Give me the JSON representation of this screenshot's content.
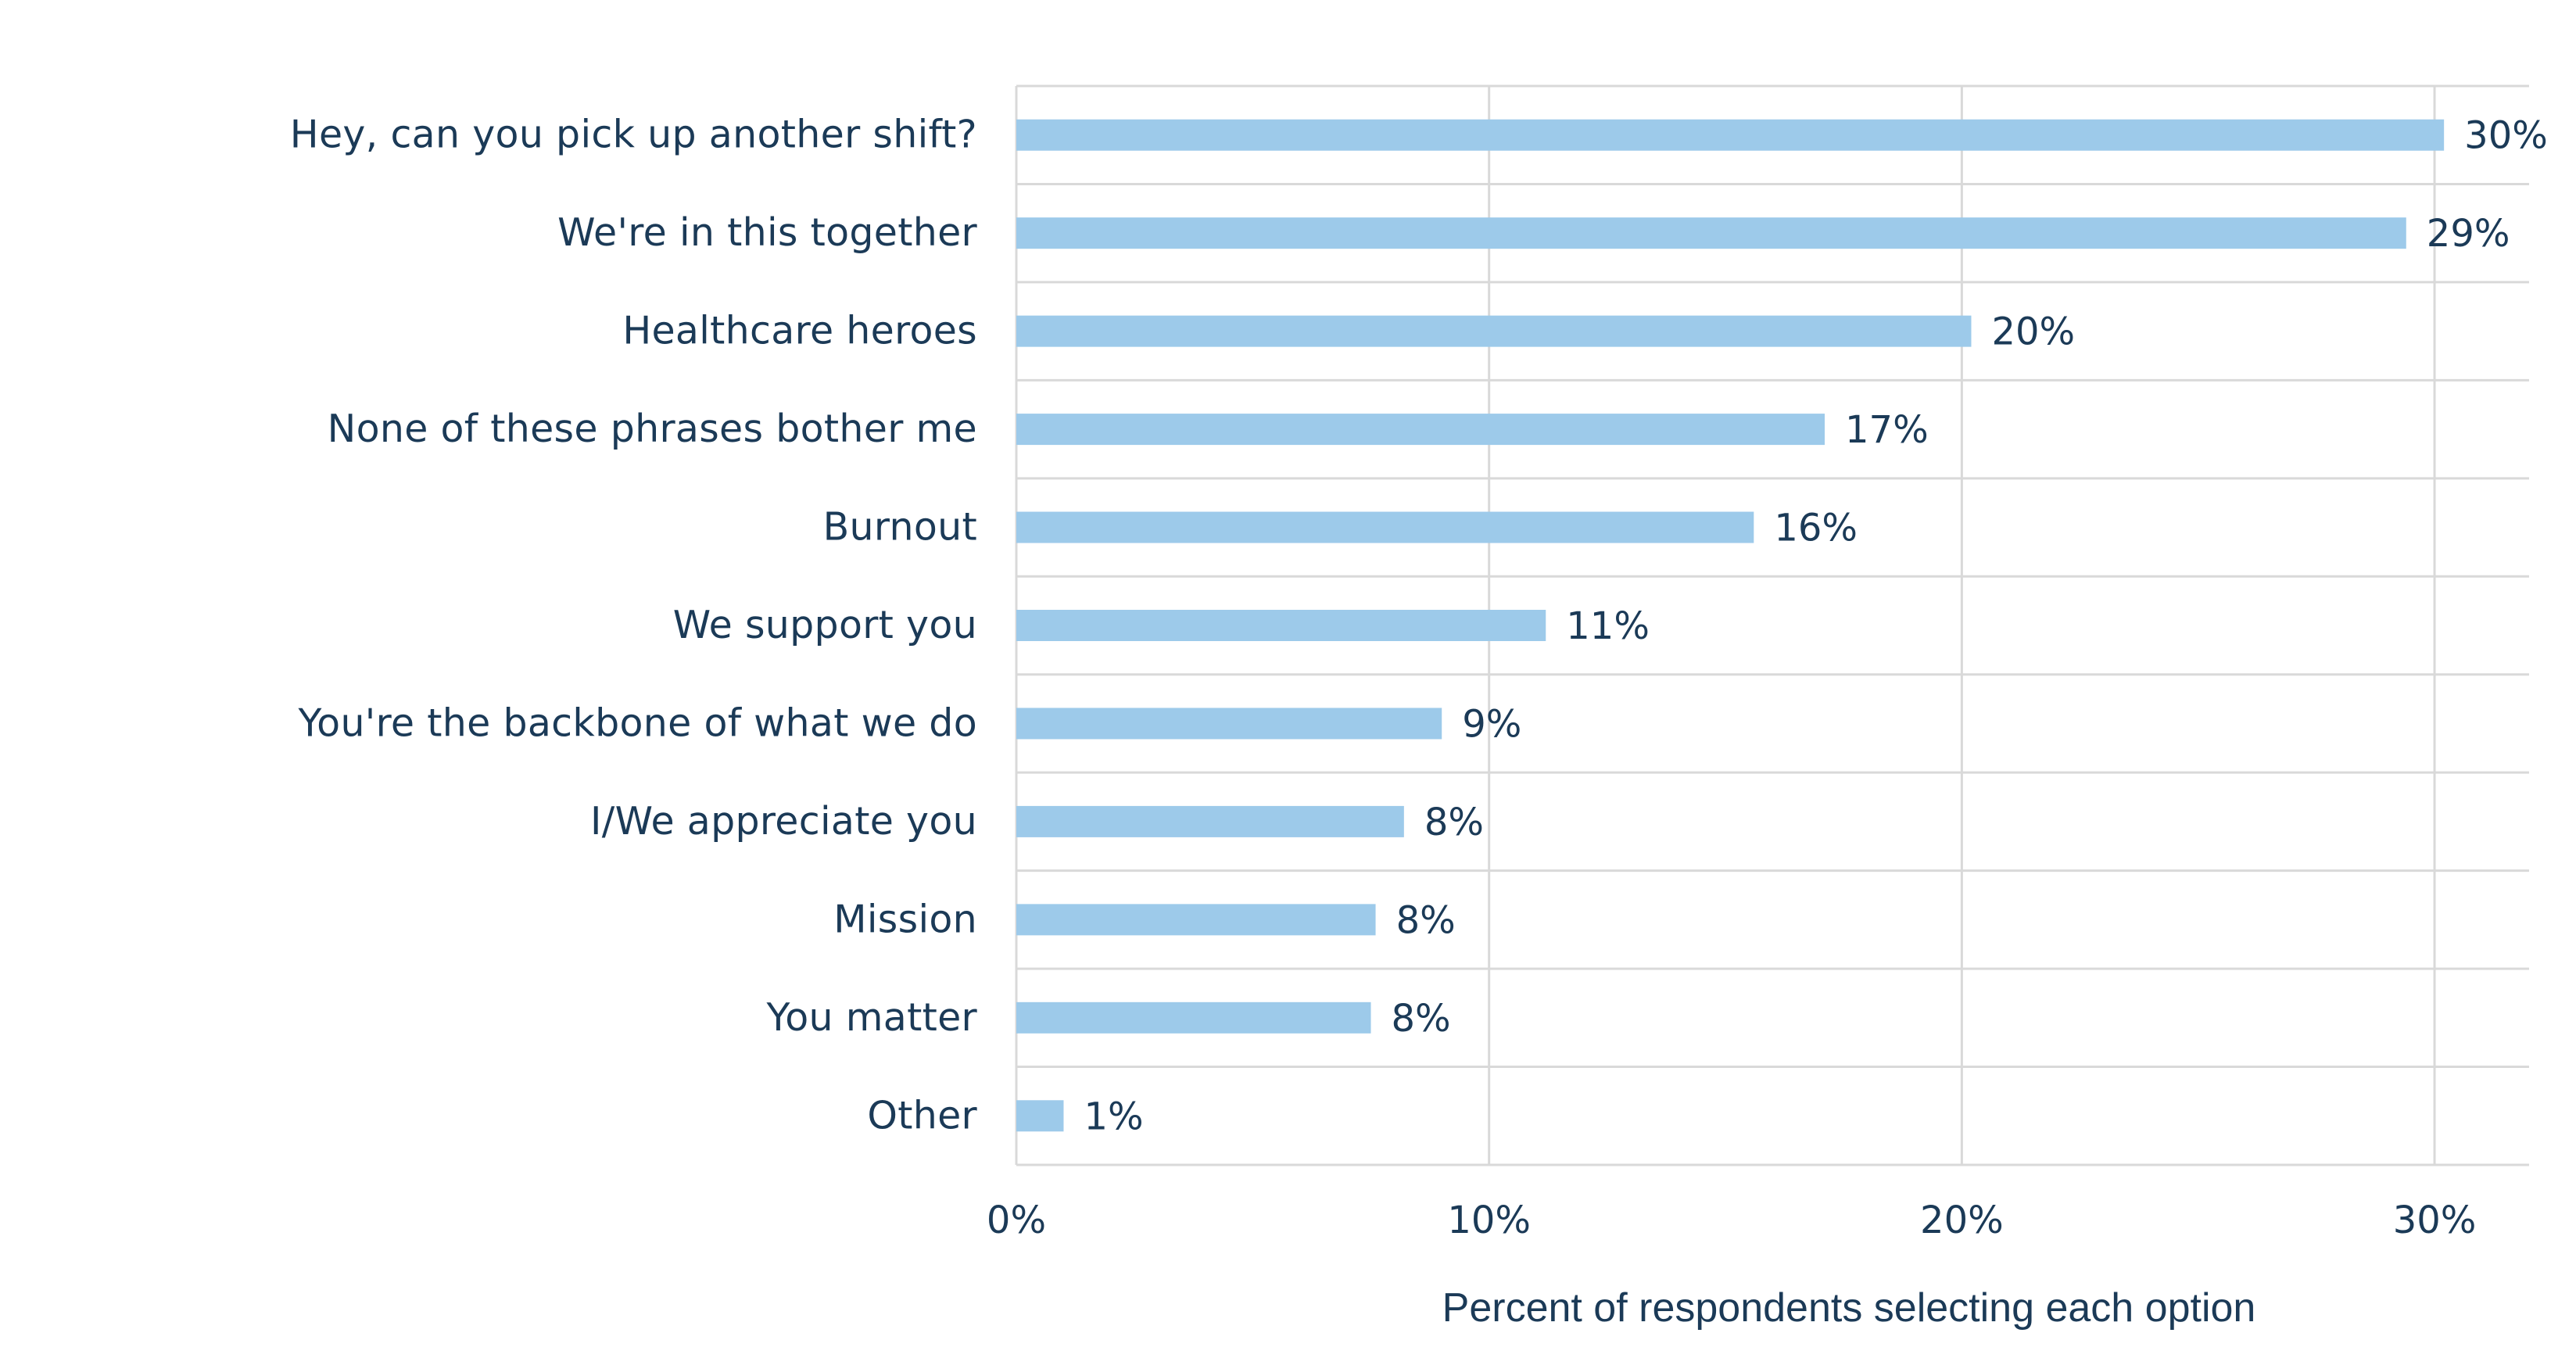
{
  "chart_data": {
    "type": "bar",
    "orientation": "horizontal",
    "categories": [
      "Hey, can you pick up another shift?",
      "We're in this together",
      "Healthcare heroes",
      "None of these phrases bother me",
      "Burnout",
      "We support you",
      "You're the backbone of what we do",
      "I/We appreciate you",
      "Mission",
      "You matter",
      "Other"
    ],
    "values": [
      30.2,
      29.4,
      20.2,
      17.1,
      15.6,
      11.2,
      9.0,
      8.2,
      7.6,
      7.5,
      1.0
    ],
    "value_labels": [
      "30%",
      "29%",
      "20%",
      "17%",
      "16%",
      "11%",
      "9%",
      "8%",
      "8%",
      "8%",
      "1%"
    ],
    "xlabel": "Percent of respondents selecting each option",
    "ylabel": "",
    "xlim": [
      0,
      32
    ],
    "xticks": [
      0,
      10,
      20,
      30
    ],
    "xtick_labels": [
      "0%",
      "10%",
      "20%",
      "30%"
    ],
    "grid": true,
    "legend": "none"
  },
  "colors": {
    "bar": "#9dcaea",
    "text": "#1b3a57",
    "grid": "#d9d9d9"
  }
}
